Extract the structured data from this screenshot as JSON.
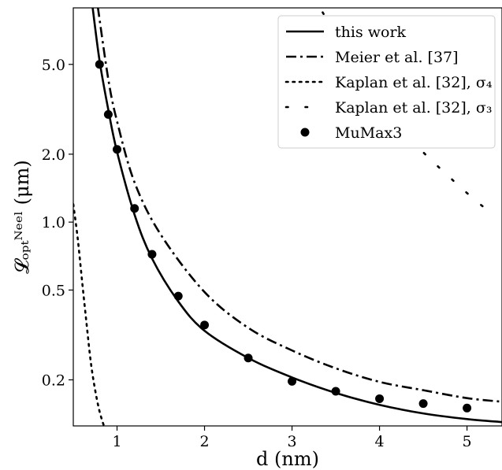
{
  "chart_data": {
    "type": "line",
    "xlabel": "d (nm)",
    "ylabel": "𝓛ₒₚₜᴺᵉᵉˡ (μm)",
    "xscale": "linear",
    "yscale": "log",
    "xlim": [
      0.5,
      5.4
    ],
    "ylim": [
      0.125,
      8.9
    ],
    "x_ticks": [
      1,
      2,
      3,
      4,
      5
    ],
    "x_tick_labels": [
      "1",
      "2",
      "3",
      "4",
      "5"
    ],
    "y_ticks": [
      0.2,
      0.5,
      1.0,
      2.0,
      5.0
    ],
    "y_tick_labels": [
      "0.2",
      "0.5",
      "1.0",
      "2.0",
      "5.0"
    ],
    "grid": false,
    "legend_position": "top-right",
    "series": [
      {
        "name": "this work",
        "style": "solid",
        "color": "#000000",
        "x": [
          0.72,
          0.8,
          0.9,
          1.0,
          1.2,
          1.4,
          1.7,
          2.0,
          2.5,
          3.0,
          3.5,
          4.0,
          4.5,
          5.0,
          5.4
        ],
        "y": [
          9.0,
          5.2,
          3.15,
          2.05,
          1.08,
          0.69,
          0.445,
          0.33,
          0.25,
          0.205,
          0.175,
          0.155,
          0.142,
          0.134,
          0.13
        ]
      },
      {
        "name": "Meier et al. [37]",
        "style": "dashdot",
        "color": "#000000",
        "x": [
          0.78,
          0.9,
          1.0,
          1.2,
          1.5,
          2.0,
          2.5,
          3.0,
          3.5,
          4.0,
          4.5,
          5.0,
          5.4
        ],
        "y": [
          9.0,
          4.3,
          2.8,
          1.5,
          0.88,
          0.49,
          0.34,
          0.27,
          0.225,
          0.196,
          0.18,
          0.166,
          0.16
        ]
      },
      {
        "name": "Kaplan et al. [32], σ₄",
        "style": "densely-dotted",
        "color": "#000000",
        "x": [
          0.5,
          0.55,
          0.6,
          0.65,
          0.7,
          0.75,
          0.8,
          0.85
        ],
        "y": [
          1.2,
          0.85,
          0.55,
          0.36,
          0.24,
          0.18,
          0.145,
          0.125
        ]
      },
      {
        "name": "Kaplan et al. [32], σ₃",
        "style": "loosely-dotted",
        "color": "#000000",
        "x": [
          3.35,
          3.55,
          3.75,
          3.95,
          4.15,
          4.35,
          4.55,
          4.75,
          4.95,
          5.15,
          5.25
        ],
        "y": [
          8.5,
          6.3,
          4.8,
          3.7,
          2.95,
          2.35,
          1.95,
          1.65,
          1.4,
          1.2,
          1.12
        ]
      },
      {
        "name": "MuMax3",
        "style": "markers",
        "color": "#000000",
        "x": [
          0.8,
          0.9,
          1.0,
          1.2,
          1.4,
          1.7,
          2.0,
          2.5,
          3.0,
          3.5,
          4.0,
          4.5,
          5.0
        ],
        "y": [
          5.0,
          3.0,
          2.1,
          1.15,
          0.72,
          0.47,
          0.35,
          0.25,
          0.197,
          0.178,
          0.165,
          0.157,
          0.15
        ]
      }
    ]
  }
}
